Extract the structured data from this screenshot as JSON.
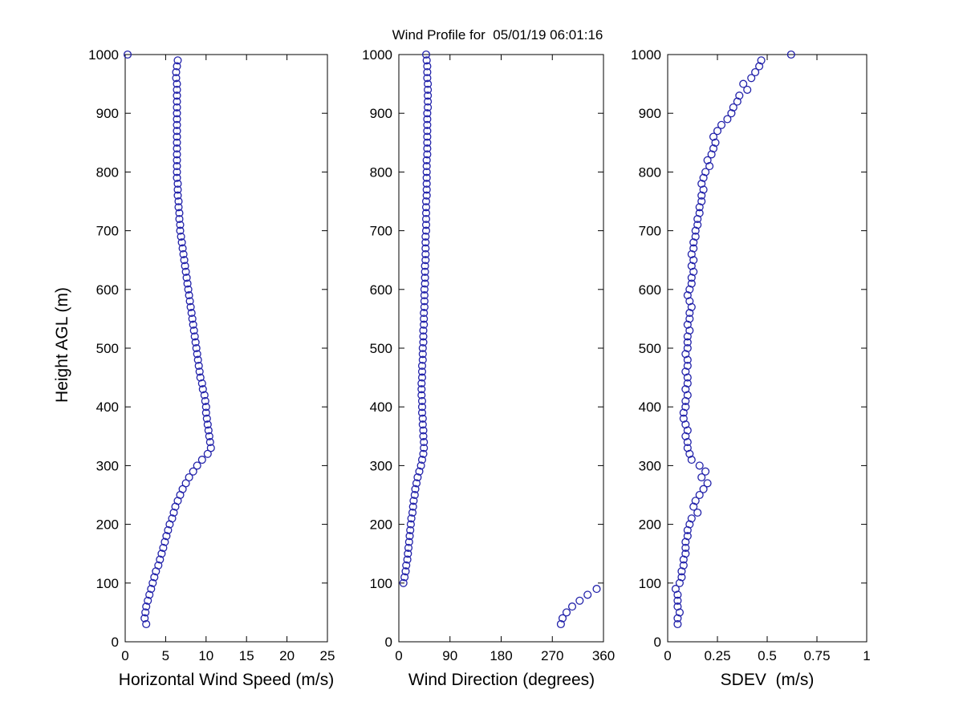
{
  "figure": {
    "marker_color": "#2222aa",
    "axis_color": "#000000",
    "background": "#ffffff"
  },
  "chart_data": {
    "type": "scatter",
    "title": "Wind Profile for  05/01/19 06:01:16",
    "ylabel": "Height AGL (m)",
    "ylim": [
      0,
      1000
    ],
    "yticks": [
      0,
      100,
      200,
      300,
      400,
      500,
      600,
      700,
      800,
      900,
      1000
    ],
    "grid": false,
    "legend": false,
    "marker": "open-circle",
    "heights_m": [
      30,
      40,
      50,
      60,
      70,
      80,
      90,
      100,
      110,
      120,
      130,
      140,
      150,
      160,
      170,
      180,
      190,
      200,
      210,
      220,
      230,
      240,
      250,
      260,
      270,
      280,
      290,
      300,
      310,
      320,
      330,
      340,
      350,
      360,
      370,
      380,
      390,
      400,
      410,
      420,
      430,
      440,
      450,
      460,
      470,
      480,
      490,
      500,
      510,
      520,
      530,
      540,
      550,
      560,
      570,
      580,
      590,
      600,
      610,
      620,
      630,
      640,
      650,
      660,
      670,
      680,
      690,
      700,
      710,
      720,
      730,
      740,
      750,
      760,
      770,
      780,
      790,
      800,
      810,
      820,
      830,
      840,
      850,
      860,
      870,
      880,
      890,
      900,
      910,
      920,
      930,
      940,
      950,
      960,
      970,
      980,
      990,
      1000
    ],
    "panels": [
      {
        "id": "speed",
        "xlabel": "Horizontal Wind Speed (m/s)",
        "xlim": [
          0,
          25
        ],
        "xticks": [
          0,
          5,
          10,
          15,
          20,
          25
        ],
        "values": [
          2.6,
          2.4,
          2.5,
          2.6,
          2.8,
          3.0,
          3.2,
          3.4,
          3.6,
          3.8,
          4.1,
          4.3,
          4.5,
          4.7,
          4.9,
          5.1,
          5.3,
          5.5,
          5.8,
          6.0,
          6.2,
          6.5,
          6.8,
          7.1,
          7.5,
          7.9,
          8.4,
          8.9,
          9.5,
          10.2,
          10.6,
          10.5,
          10.4,
          10.3,
          10.2,
          10.1,
          10.0,
          10.0,
          9.9,
          9.8,
          9.6,
          9.5,
          9.3,
          9.2,
          9.1,
          9.0,
          8.9,
          8.8,
          8.7,
          8.6,
          8.5,
          8.4,
          8.3,
          8.2,
          8.1,
          8.0,
          7.9,
          7.8,
          7.7,
          7.6,
          7.5,
          7.4,
          7.3,
          7.2,
          7.1,
          7.0,
          6.9,
          6.8,
          6.8,
          6.7,
          6.7,
          6.6,
          6.6,
          6.5,
          6.5,
          6.5,
          6.4,
          6.4,
          6.4,
          6.4,
          6.4,
          6.4,
          6.4,
          6.4,
          6.4,
          6.4,
          6.4,
          6.4,
          6.4,
          6.4,
          6.4,
          6.4,
          6.4,
          6.3,
          6.3,
          6.4,
          6.5,
          0.3
        ]
      },
      {
        "id": "direction",
        "xlabel": "Wind Direction (degrees)",
        "xlim": [
          0,
          360
        ],
        "xticks": [
          0,
          90,
          180,
          270,
          360
        ],
        "values": [
          285,
          288,
          295,
          305,
          318,
          332,
          348,
          8,
          10,
          12,
          13,
          15,
          16,
          17,
          18,
          19,
          20,
          21,
          22,
          24,
          25,
          26,
          28,
          29,
          31,
          33,
          36,
          39,
          41,
          43,
          44,
          44,
          43,
          43,
          42,
          42,
          41,
          41,
          41,
          40,
          40,
          40,
          41,
          41,
          41,
          42,
          42,
          42,
          43,
          43,
          43,
          44,
          44,
          44,
          45,
          45,
          45,
          45,
          46,
          46,
          46,
          46,
          47,
          47,
          47,
          47,
          47,
          48,
          48,
          48,
          48,
          48,
          48,
          49,
          49,
          49,
          49,
          49,
          49,
          49,
          50,
          50,
          50,
          50,
          50,
          50,
          50,
          50,
          51,
          51,
          51,
          51,
          51,
          50,
          50,
          50,
          49,
          48
        ]
      },
      {
        "id": "sdev",
        "xlabel": "SDEV  (m/s)",
        "xlim": [
          0,
          1
        ],
        "xticks": [
          0,
          0.25,
          0.5,
          0.75,
          1
        ],
        "values": [
          0.05,
          0.05,
          0.06,
          0.05,
          0.05,
          0.05,
          0.04,
          0.06,
          0.07,
          0.07,
          0.08,
          0.08,
          0.09,
          0.09,
          0.09,
          0.1,
          0.1,
          0.11,
          0.12,
          0.15,
          0.13,
          0.14,
          0.16,
          0.18,
          0.2,
          0.17,
          0.19,
          0.16,
          0.12,
          0.11,
          0.1,
          0.1,
          0.09,
          0.1,
          0.09,
          0.08,
          0.08,
          0.09,
          0.09,
          0.1,
          0.09,
          0.1,
          0.1,
          0.09,
          0.1,
          0.1,
          0.09,
          0.1,
          0.1,
          0.1,
          0.11,
          0.1,
          0.11,
          0.11,
          0.12,
          0.11,
          0.1,
          0.11,
          0.12,
          0.12,
          0.13,
          0.12,
          0.13,
          0.12,
          0.13,
          0.13,
          0.14,
          0.14,
          0.15,
          0.15,
          0.16,
          0.16,
          0.17,
          0.17,
          0.18,
          0.17,
          0.18,
          0.19,
          0.21,
          0.2,
          0.22,
          0.23,
          0.24,
          0.23,
          0.25,
          0.27,
          0.3,
          0.32,
          0.33,
          0.35,
          0.36,
          0.4,
          0.38,
          0.42,
          0.44,
          0.46,
          0.47,
          0.62
        ]
      }
    ]
  }
}
